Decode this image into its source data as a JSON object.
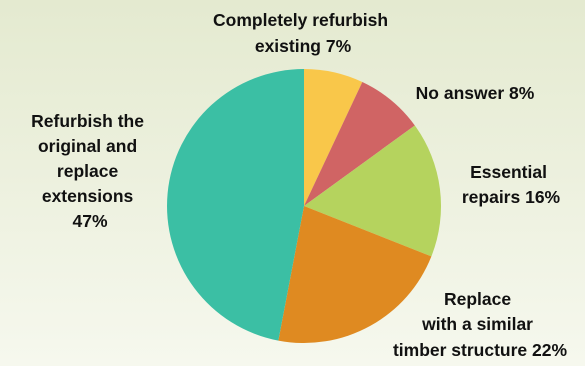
{
  "chart_data": {
    "type": "pie",
    "title": "",
    "start_angle_deg": 0,
    "direction": "clockwise",
    "slices": [
      {
        "name": "Completely refurbish existing",
        "value": 7,
        "color": "#f9c74a",
        "label_lines": [
          "Completely refurbish",
          "existing 7%"
        ]
      },
      {
        "name": "No answer",
        "value": 8,
        "color": "#d06464",
        "label_lines": [
          "No answer 8%"
        ]
      },
      {
        "name": "Essential repairs",
        "value": 16,
        "color": "#b5d35e",
        "label_lines": [
          "Essential",
          "repairs 16%"
        ]
      },
      {
        "name": "Replace with a similar timber structure",
        "value": 22,
        "color": "#df8a21",
        "label_lines": [
          "Replace",
          "with a similar",
          "timber structure 22%"
        ]
      },
      {
        "name": "Refurbish the original and replace extensions",
        "value": 47,
        "color": "#3bbfa4",
        "label_lines": [
          "Refurbish the",
          "original and",
          "replace",
          "extensions",
          "47%"
        ]
      }
    ]
  }
}
